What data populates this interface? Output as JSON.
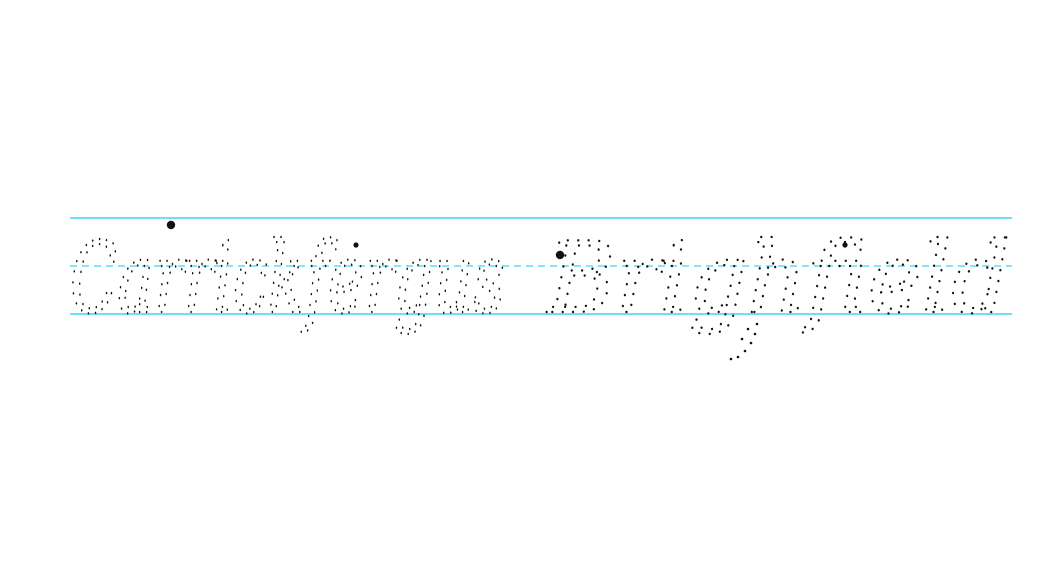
{
  "worksheet": {
    "phrase": "Carrickfergus Brighfield",
    "words": [
      {
        "text": "Carrickfergus"
      },
      {
        "text": "Brighfield"
      }
    ],
    "guide_color": "#41d4f0",
    "dot_color": "#111111"
  }
}
